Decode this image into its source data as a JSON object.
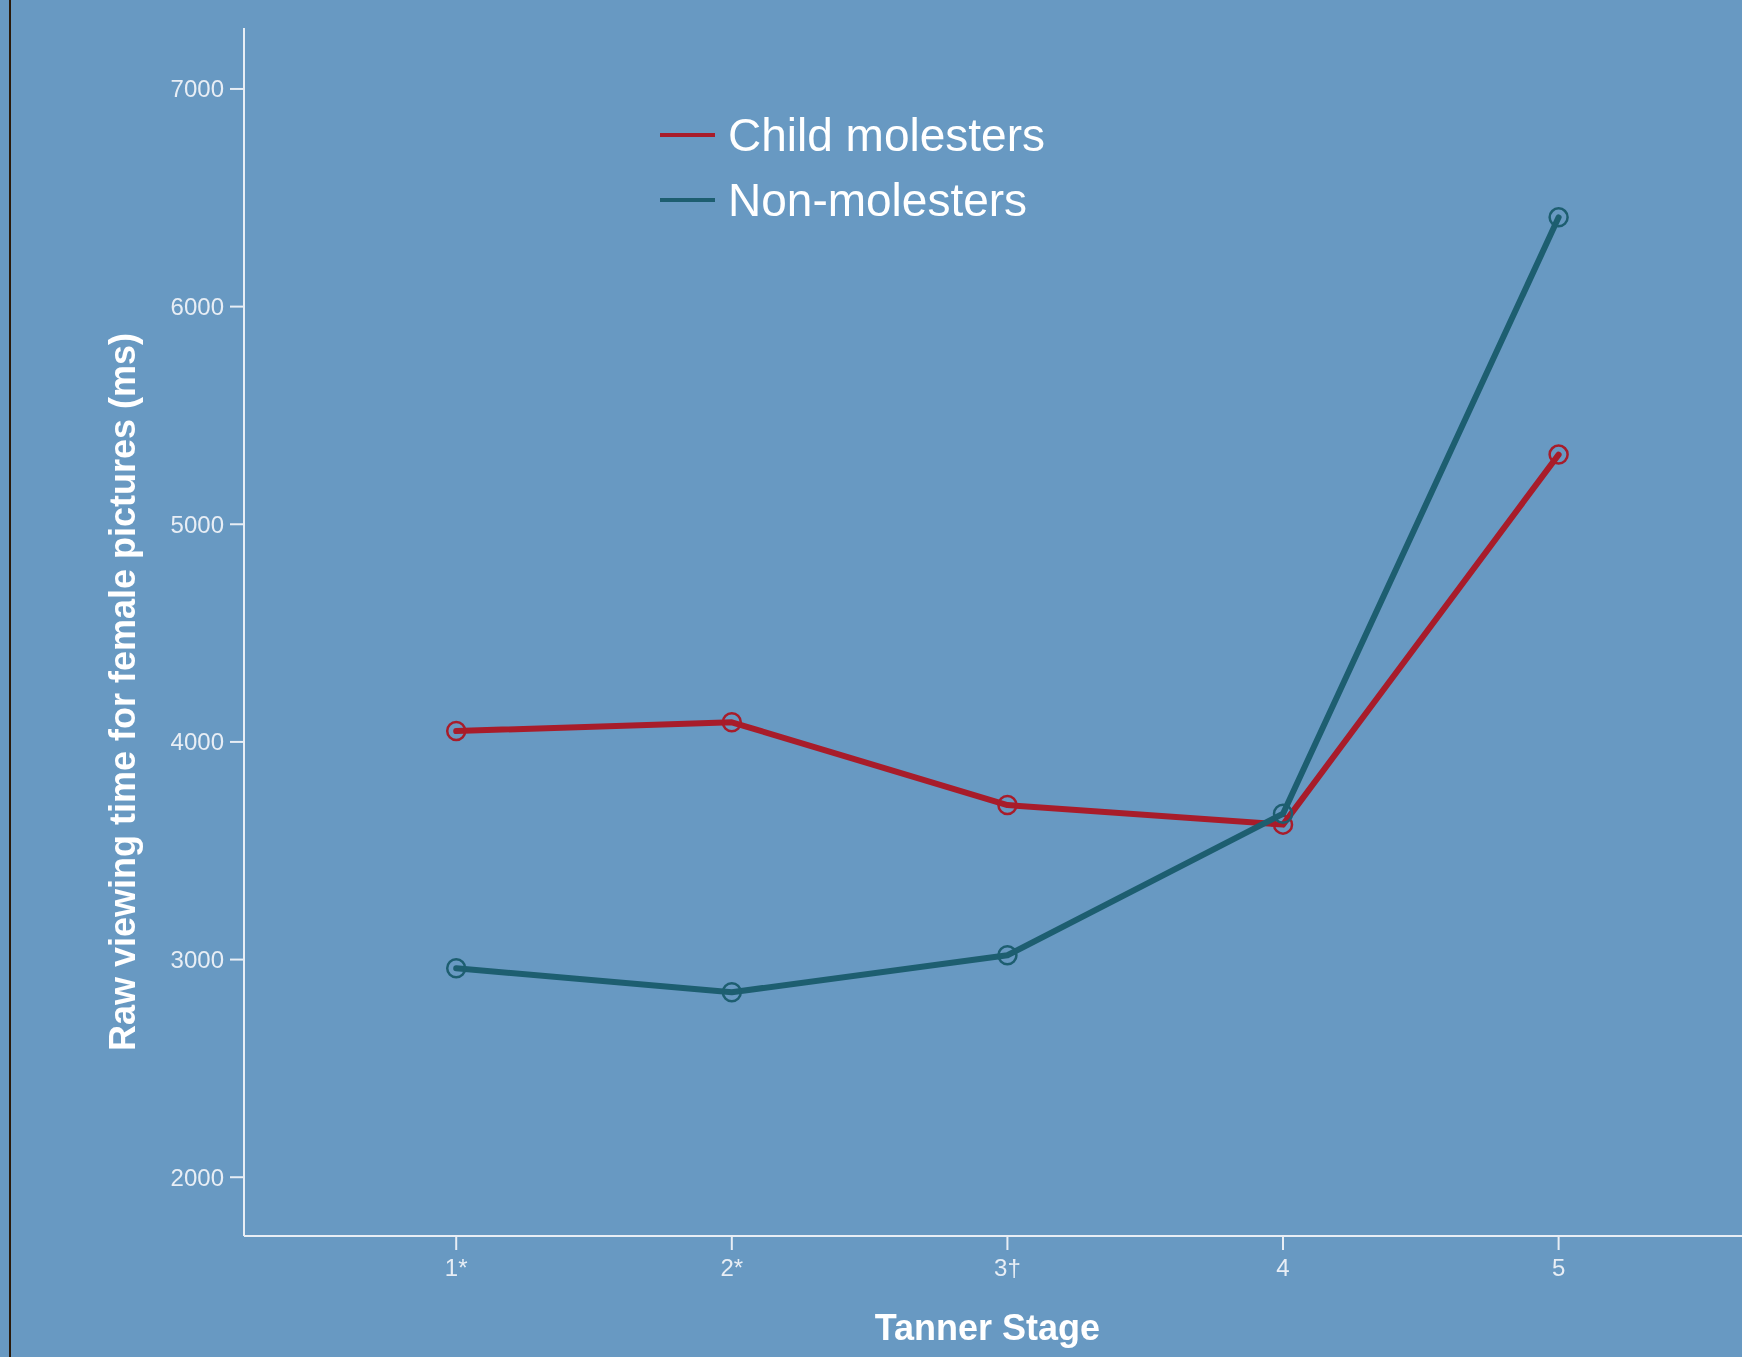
{
  "chart_data": {
    "type": "line",
    "xlabel": "Tanner Stage",
    "ylabel": "Raw viewing time for female pictures (ms)",
    "categories": [
      "1*",
      "2*",
      "3†",
      "4",
      "5"
    ],
    "series": [
      {
        "name": "Child molesters",
        "color": "#a81c2a",
        "values": [
          4050,
          4090,
          3710,
          3620,
          5320
        ]
      },
      {
        "name": "Non-molesters",
        "color": "#1d5e70",
        "values": [
          2960,
          2850,
          3020,
          3670,
          6410
        ]
      }
    ],
    "ylim": [
      1730,
      7280
    ],
    "yticks": [
      2000,
      3000,
      4000,
      5000,
      6000,
      7000
    ],
    "grid": false,
    "legend": "top",
    "marker": "circle",
    "line_style": "solid"
  }
}
